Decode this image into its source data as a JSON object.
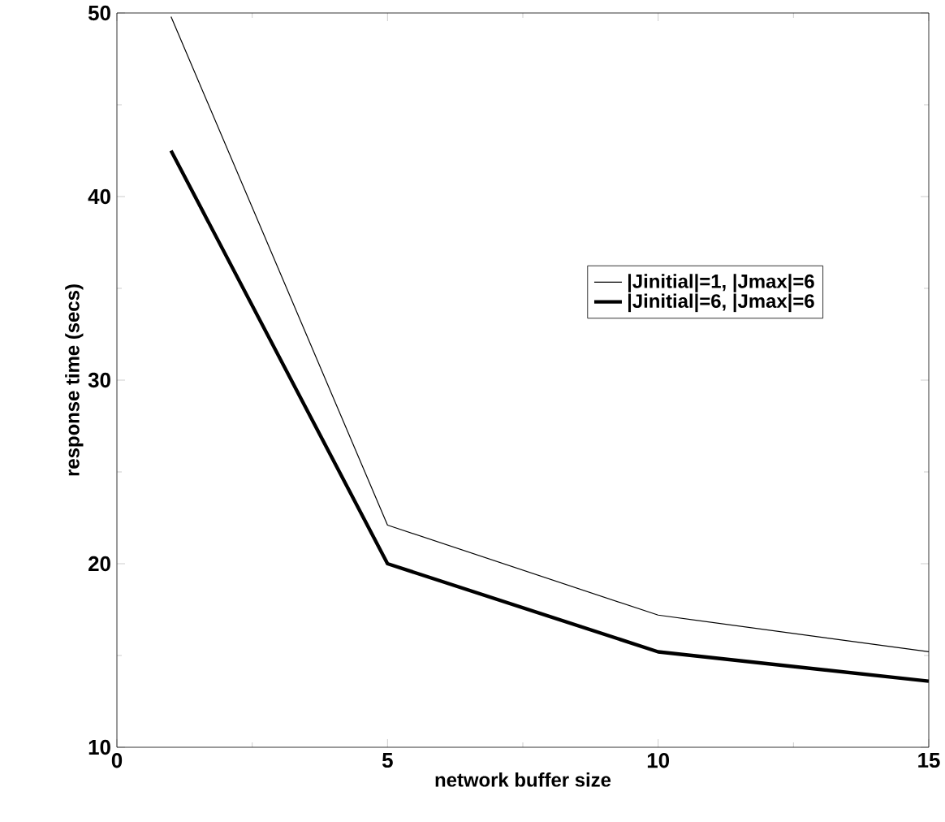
{
  "chart_data": {
    "type": "line",
    "xlabel": "network buffer size",
    "ylabel": "response time (secs)",
    "xlim": [
      0,
      15
    ],
    "ylim": [
      10,
      50
    ],
    "xticks": [
      0,
      5,
      10,
      15
    ],
    "yticks": [
      10,
      20,
      30,
      40,
      50
    ],
    "grid": false,
    "legend": "right",
    "marker": "none",
    "line_style": "solid",
    "series": [
      {
        "name": "|Jinitial|=1, |Jmax|=6",
        "color": "#000000",
        "x": [
          1,
          5,
          10,
          15
        ],
        "values": [
          49.8,
          22.1,
          17.2,
          15.2
        ]
      },
      {
        "name": "|Jinitial|=6, |Jmax|=6",
        "color": "#000000",
        "x": [
          1,
          5,
          10,
          15
        ],
        "values": [
          42.5,
          20.0,
          15.2,
          13.6
        ]
      }
    ]
  }
}
